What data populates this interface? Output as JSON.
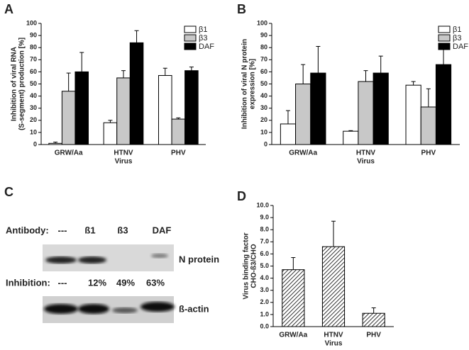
{
  "panel_labels": [
    "A",
    "B",
    "C",
    "D"
  ],
  "chart_data": [
    {
      "type": "bar",
      "ylabel": [
        "Inhibition of viral RNA",
        "(S-segment) production [%]"
      ],
      "xlabel": "Virus",
      "categories": [
        "GRW/Aa",
        "HTNV",
        "PHV"
      ],
      "series": [
        {
          "name": "β1",
          "color": "#ffffff",
          "values": [
            1,
            18,
            57
          ],
          "errors": [
            1,
            2,
            6
          ]
        },
        {
          "name": "β3",
          "color": "#c8c8c8",
          "values": [
            44,
            55,
            21
          ],
          "errors": [
            15,
            6,
            1
          ]
        },
        {
          "name": "DAF",
          "color": "#000000",
          "values": [
            60,
            84,
            61
          ],
          "errors": [
            16,
            10,
            3
          ]
        }
      ],
      "ylim": [
        0,
        100
      ],
      "yticks": [
        0,
        10,
        20,
        30,
        40,
        50,
        60,
        70,
        80,
        90,
        100
      ],
      "legend": "top-right"
    },
    {
      "type": "bar",
      "ylabel": [
        "Inhibition of viral N protein",
        "expression [%]"
      ],
      "xlabel": "Virus",
      "categories": [
        "GRW/Aa",
        "HTNV",
        "PHV"
      ],
      "series": [
        {
          "name": "β1",
          "color": "#ffffff",
          "values": [
            17,
            11,
            49
          ],
          "errors": [
            11,
            0.5,
            3
          ]
        },
        {
          "name": "β3",
          "color": "#c8c8c8",
          "values": [
            50,
            52,
            31
          ],
          "errors": [
            16,
            9,
            15
          ]
        },
        {
          "name": "DAF",
          "color": "#000000",
          "values": [
            59,
            59,
            66
          ],
          "errors": [
            22,
            14,
            16
          ]
        }
      ],
      "ylim": [
        0,
        100
      ],
      "yticks": [
        0,
        10,
        20,
        30,
        40,
        50,
        60,
        70,
        80,
        90,
        100
      ],
      "legend": "top-right"
    },
    {
      "type": "bar",
      "ylabel": [
        "Virus binding factor",
        "CHO-ß3/CHO"
      ],
      "xlabel": "Virus",
      "categories": [
        "GRW/Aa",
        "HTNV",
        "PHV"
      ],
      "values": [
        4.7,
        6.6,
        1.1
      ],
      "errors": [
        1.0,
        2.1,
        0.45
      ],
      "color": "#555555",
      "hatch": true,
      "ylim": [
        0,
        10
      ],
      "yticks": [
        {
          "value": 0,
          "label": "0.0"
        },
        {
          "value": 1,
          "label": "1.0"
        },
        {
          "value": 2,
          "label": "2.0"
        },
        {
          "value": 3,
          "label": "3.0"
        },
        {
          "value": 4,
          "label": "4.0"
        },
        {
          "value": 5,
          "label": "5.0"
        },
        {
          "value": 6,
          "label": "6.0"
        },
        {
          "value": 7,
          "label": "7.0"
        },
        {
          "value": 8,
          "label": "8.0"
        },
        {
          "value": 9,
          "label": "9.0"
        },
        {
          "value": 10,
          "label": "10.0"
        }
      ]
    }
  ],
  "blot": {
    "antibody_label": "Antibody:",
    "antibodies": [
      "---",
      "ß1",
      "ß3",
      "DAF"
    ],
    "band1": "N protein",
    "inhibition_label": "Inhibition:",
    "inhibitions": [
      "---",
      "12%",
      "49%",
      "63%"
    ],
    "band2": "ß-actin"
  }
}
